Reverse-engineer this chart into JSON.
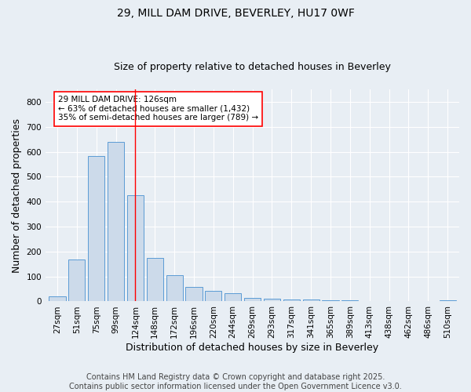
{
  "title_line1": "29, MILL DAM DRIVE, BEVERLEY, HU17 0WF",
  "title_line2": "Size of property relative to detached houses in Beverley",
  "xlabel": "Distribution of detached houses by size in Beverley",
  "ylabel": "Number of detached properties",
  "categories": [
    "27sqm",
    "51sqm",
    "75sqm",
    "99sqm",
    "124sqm",
    "148sqm",
    "172sqm",
    "196sqm",
    "220sqm",
    "244sqm",
    "269sqm",
    "293sqm",
    "317sqm",
    "341sqm",
    "365sqm",
    "389sqm",
    "413sqm",
    "438sqm",
    "462sqm",
    "486sqm",
    "510sqm"
  ],
  "values": [
    20,
    168,
    583,
    641,
    425,
    175,
    105,
    57,
    42,
    32,
    15,
    10,
    9,
    7,
    5,
    4,
    2,
    1,
    0,
    0,
    6
  ],
  "bar_color": "#ccdaea",
  "bar_edge_color": "#5b9bd5",
  "vline_x_index": 4,
  "vline_color": "red",
  "annotation_text": "29 MILL DAM DRIVE: 126sqm\n← 63% of detached houses are smaller (1,432)\n35% of semi-detached houses are larger (789) →",
  "annotation_box_color": "white",
  "annotation_box_edge": "red",
  "ylim": [
    0,
    850
  ],
  "yticks": [
    0,
    100,
    200,
    300,
    400,
    500,
    600,
    700,
    800
  ],
  "footer_line1": "Contains HM Land Registry data © Crown copyright and database right 2025.",
  "footer_line2": "Contains public sector information licensed under the Open Government Licence v3.0.",
  "background_color": "#e8eef4",
  "plot_bg_color": "#e8eef4",
  "grid_color": "white",
  "title_fontsize": 10,
  "subtitle_fontsize": 9,
  "axis_label_fontsize": 9,
  "tick_fontsize": 7.5,
  "footer_fontsize": 7,
  "annotation_fontsize": 7.5
}
